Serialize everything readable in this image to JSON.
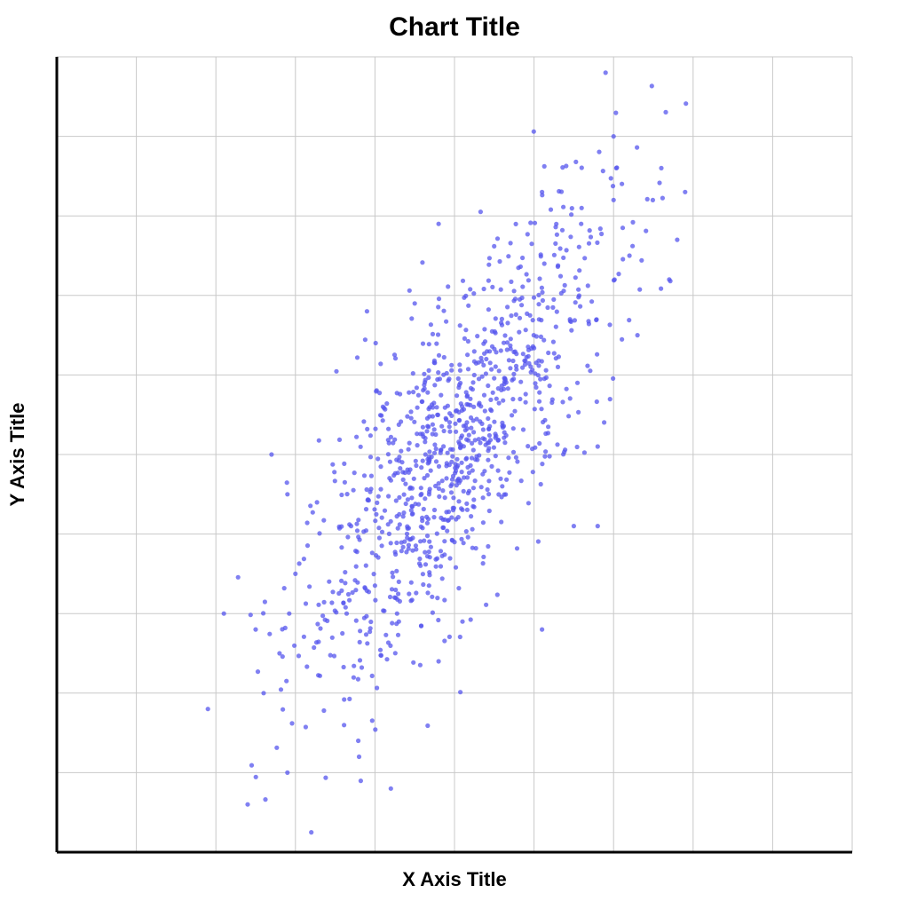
{
  "chart_data": {
    "type": "scatter",
    "title": "Chart Title",
    "xlabel": "X Axis Title",
    "ylabel": "Y Axis Title",
    "xlim": [
      0,
      10
    ],
    "ylim": [
      0,
      10
    ],
    "grid": true,
    "tick_labels_shown": false,
    "point_color": "#5555ee",
    "point_opacity": 0.75,
    "axis_color": "#000000",
    "grid_color": "#c8c8c8",
    "series": [
      {
        "points_note": "approx. 1000 points, bivariate normal, positive correlation",
        "representative_points": [
          [
            6.9,
            9.8
          ],
          [
            7.0,
            9.0
          ],
          [
            7.6,
            8.6
          ],
          [
            7.9,
            8.3
          ],
          [
            7.0,
            8.2
          ],
          [
            6.1,
            8.3
          ],
          [
            4.8,
            7.9
          ],
          [
            7.8,
            7.7
          ],
          [
            7.7,
            7.2
          ],
          [
            7.2,
            7.5
          ],
          [
            4.5,
            6.9
          ],
          [
            3.9,
            6.8
          ],
          [
            7.3,
            6.5
          ],
          [
            6.3,
            6.1
          ],
          [
            5.4,
            6.2
          ],
          [
            5.2,
            5.7
          ],
          [
            4.1,
            5.6
          ],
          [
            2.7,
            5.0
          ],
          [
            6.8,
            5.1
          ],
          [
            4.9,
            4.7
          ],
          [
            5.6,
            4.6
          ],
          [
            3.7,
            4.1
          ],
          [
            2.9,
            4.5
          ],
          [
            6.5,
            4.1
          ],
          [
            6.8,
            4.1
          ],
          [
            5.0,
            3.9
          ],
          [
            4.3,
            3.4
          ],
          [
            3.0,
            3.5
          ],
          [
            2.1,
            3.0
          ],
          [
            2.5,
            2.8
          ],
          [
            4.3,
            2.9
          ],
          [
            5.1,
            2.9
          ],
          [
            6.1,
            2.8
          ],
          [
            2.8,
            2.5
          ],
          [
            4.8,
            2.4
          ],
          [
            2.6,
            2.0
          ],
          [
            1.9,
            1.8
          ],
          [
            3.8,
            1.2
          ],
          [
            2.9,
            1.0
          ],
          [
            4.2,
            0.8
          ],
          [
            2.4,
            0.6
          ],
          [
            3.2,
            0.25
          ]
        ]
      }
    ]
  }
}
